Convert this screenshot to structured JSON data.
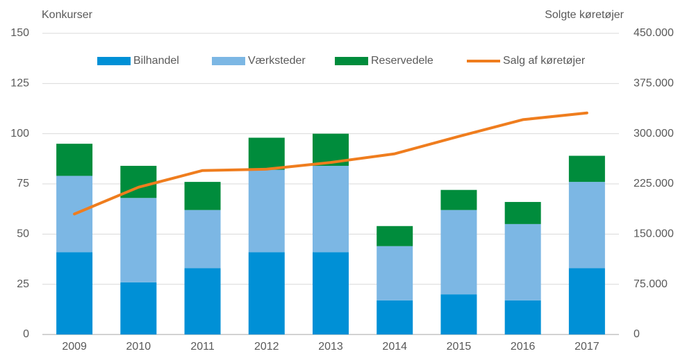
{
  "chart_data": {
    "type": "bar",
    "stacked": true,
    "y_label": "Konkurser",
    "y2_label": "Solgte køretøjer",
    "categories": [
      "2009",
      "2010",
      "2011",
      "2012",
      "2013",
      "2014",
      "2015",
      "2016",
      "2017"
    ],
    "series": [
      {
        "name": "Bilhandel",
        "color": "#0090d6",
        "values": [
          41,
          26,
          33,
          41,
          41,
          17,
          20,
          17,
          33
        ]
      },
      {
        "name": "Værksteder",
        "color": "#7cb7e4",
        "values": [
          38,
          42,
          29,
          41,
          43,
          27,
          42,
          38,
          43
        ]
      },
      {
        "name": "Reservedele",
        "color": "#008c3c",
        "values": [
          16,
          16,
          14,
          16,
          16,
          10,
          10,
          11,
          13
        ]
      },
      {
        "name": "Salg af køretøjer",
        "color": "#ef7d1e",
        "type": "line",
        "axis": "y2",
        "values": [
          180000,
          220000,
          245000,
          247000,
          257000,
          270000,
          296000,
          321000,
          331000
        ]
      }
    ],
    "ylim": [
      0,
      150
    ],
    "yticks": [
      0,
      25,
      50,
      75,
      100,
      125,
      150
    ],
    "y2lim": [
      0,
      450000
    ],
    "y2ticks": [
      0,
      {
        "value": 75000,
        "label": "75.000"
      },
      {
        "value": 150000,
        "label": "150.000"
      },
      {
        "value": 225000,
        "label": "225.000"
      },
      {
        "value": 300000,
        "label": "300.000"
      },
      {
        "value": 375000,
        "label": "375.000"
      },
      {
        "value": 450000,
        "label": "450.000"
      }
    ],
    "grid": true,
    "legend": "top"
  }
}
